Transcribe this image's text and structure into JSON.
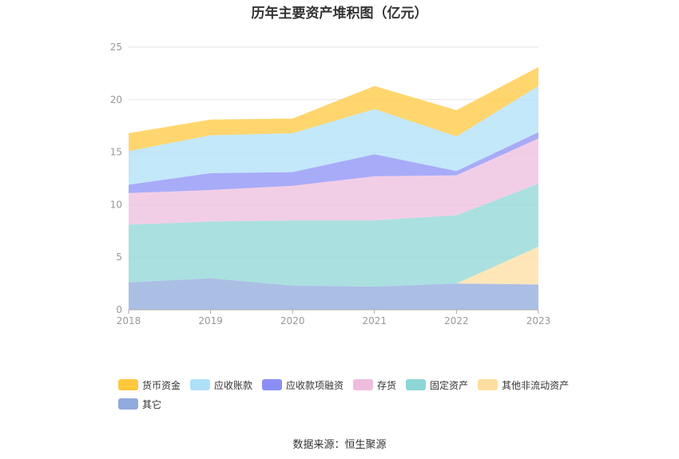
{
  "title": "历年主要资产堆积图（亿元）",
  "source": "数据来源：恒生聚源",
  "chart_data": {
    "type": "area",
    "stacked": true,
    "categories": [
      "2018",
      "2019",
      "2020",
      "2021",
      "2022",
      "2023"
    ],
    "ylim": [
      0,
      25
    ],
    "yticks": [
      0,
      5,
      10,
      15,
      20,
      25
    ],
    "grid": true,
    "legend_position": "bottom",
    "series": [
      {
        "name": "其它",
        "color": "#8FAADC",
        "values": [
          2.6,
          3.0,
          2.3,
          2.2,
          2.5,
          2.4
        ]
      },
      {
        "name": "其他非流动资产",
        "color": "#FFDEA0",
        "values": [
          0.0,
          0.0,
          0.0,
          0.0,
          0.0,
          3.6
        ]
      },
      {
        "name": "固定资产",
        "color": "#8ED6D6",
        "values": [
          5.5,
          5.4,
          6.2,
          6.3,
          6.5,
          6.0
        ]
      },
      {
        "name": "存货",
        "color": "#EEBDDD",
        "values": [
          3.0,
          3.0,
          3.3,
          4.2,
          3.8,
          4.3
        ]
      },
      {
        "name": "应收款项融资",
        "color": "#8B8FF5",
        "values": [
          0.8,
          1.6,
          1.3,
          2.1,
          0.4,
          0.6
        ]
      },
      {
        "name": "应收账款",
        "color": "#AEE0F8",
        "values": [
          3.2,
          3.6,
          3.7,
          4.3,
          3.3,
          4.4
        ]
      },
      {
        "name": "货币资金",
        "color": "#FFC83D",
        "values": [
          1.7,
          1.5,
          1.4,
          2.2,
          2.5,
          1.8
        ]
      }
    ],
    "legend_order": [
      "货币资金",
      "应收账款",
      "应收款项融资",
      "存货",
      "固定资产",
      "其他非流动资产",
      "其它"
    ]
  }
}
